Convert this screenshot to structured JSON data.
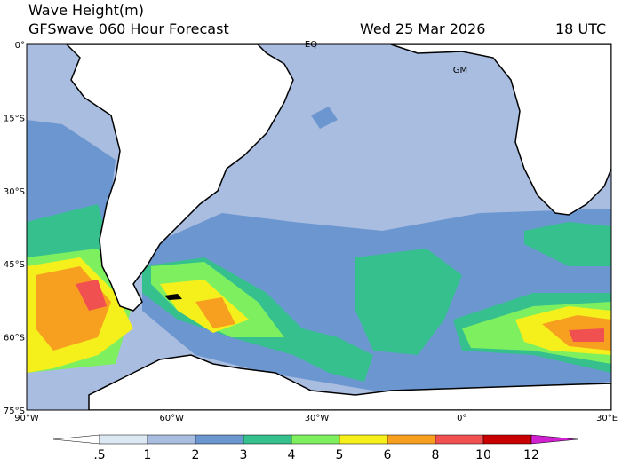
{
  "header": {
    "title": "Wave Height(m)",
    "subtitle": "GFSwave 060 Hour Forecast",
    "date": "Wed 25 Mar 2026",
    "time": "18 UTC"
  },
  "map": {
    "lat_labels": [
      "0°",
      "15°S",
      "30°S",
      "45°S",
      "60°S",
      "75°S"
    ],
    "lon_labels": [
      "90°W",
      "60°W",
      "30°W",
      "0°",
      "30°E"
    ],
    "place_labels": [
      "EQ",
      "GM"
    ]
  },
  "colorbar": {
    "labels": [
      ".5",
      "1",
      "2",
      "3",
      "4",
      "5",
      "6",
      "8",
      "10",
      "12"
    ],
    "colors": [
      "#ffffff",
      "#dde8f5",
      "#a8bde0",
      "#6c96d0",
      "#35c08e",
      "#7ef060",
      "#f5f01c",
      "#f7a020",
      "#f05050",
      "#c80000",
      "#d020d0"
    ]
  }
}
